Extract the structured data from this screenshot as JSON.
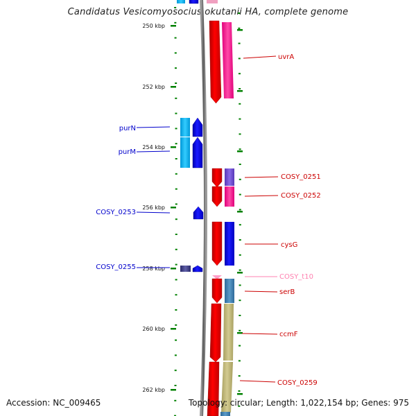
{
  "title": "Candidatus Vesicomyosocius okutanii HA, complete genome",
  "accession": "Accession: NC_009465",
  "summary": "Topology: circular; Length: 1,022,154 bp; Genes: 975",
  "scale_labels": [
    "250 kbp",
    "252 kbp",
    "254 kbp",
    "256 kbp",
    "258 kbp",
    "260 kbp",
    "262 kbp"
  ],
  "genes_forward_strand": [
    "uvrA",
    "COSY_0251",
    "COSY_0252",
    "cysG",
    "COSY_t10",
    "serB",
    "ccmF",
    "COSY_0259"
  ],
  "genes_reverse_strand": [
    "purN",
    "purM",
    "COSY_0253",
    "COSY_0255"
  ],
  "colors": {
    "forward_gene": "#ff0000",
    "reverse_gene": "#0000ff",
    "trna": "#ff9ec8",
    "label_forward": "#cc0000",
    "label_reverse": "#0000cc",
    "label_trna": "#ff80b0",
    "tick": "#008000",
    "backbone": "#808080"
  }
}
